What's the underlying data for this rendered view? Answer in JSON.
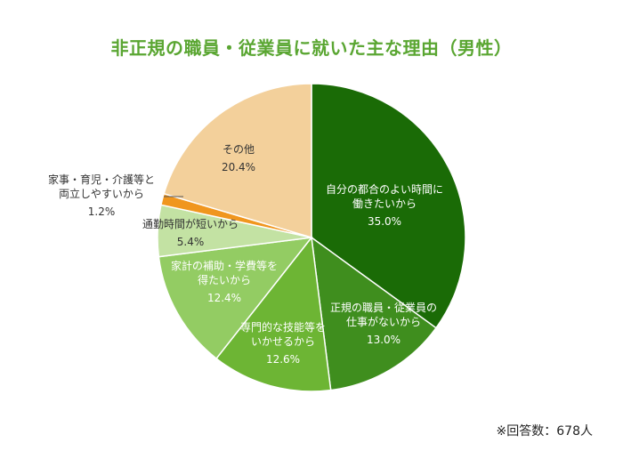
{
  "chart_data": {
    "type": "pie",
    "title": "非正規の職員・従業員に就いた主な理由（男性）",
    "note": "※回答数：678人",
    "slices": [
      {
        "label_lines": [
          "自分の都合のよい時間に",
          "働きたいから"
        ],
        "value": 35.0,
        "value_label": "35.0%",
        "color": "#1a6b06",
        "text_color": "#ffffff"
      },
      {
        "label_lines": [
          "正規の職員・従業員の",
          "仕事がないから"
        ],
        "value": 13.0,
        "value_label": "13.0%",
        "color": "#3f8e1e",
        "text_color": "#ffffff"
      },
      {
        "label_lines": [
          "専門的な技能等を",
          "いかせるから"
        ],
        "value": 12.6,
        "value_label": "12.6%",
        "color": "#6db534",
        "text_color": "#ffffff"
      },
      {
        "label_lines": [
          "家計の補助・学費等を",
          "得たいから"
        ],
        "value": 12.4,
        "value_label": "12.4%",
        "color": "#93cc63",
        "text_color": "#ffffff"
      },
      {
        "label_lines": [
          "通勤時間が短いから"
        ],
        "value": 5.4,
        "value_label": "5.4%",
        "color": "#c3e2a3",
        "text_color": "#333333"
      },
      {
        "label_lines": [
          "家事・育児・介護等と",
          "両立しやすいから"
        ],
        "value": 1.2,
        "value_label": "1.2%",
        "color": "#f0961e",
        "text_color": "#333333"
      },
      {
        "label_lines": [
          "その他"
        ],
        "value": 20.4,
        "value_label": "20.4%",
        "color": "#f3d09b",
        "text_color": "#333333"
      }
    ]
  }
}
